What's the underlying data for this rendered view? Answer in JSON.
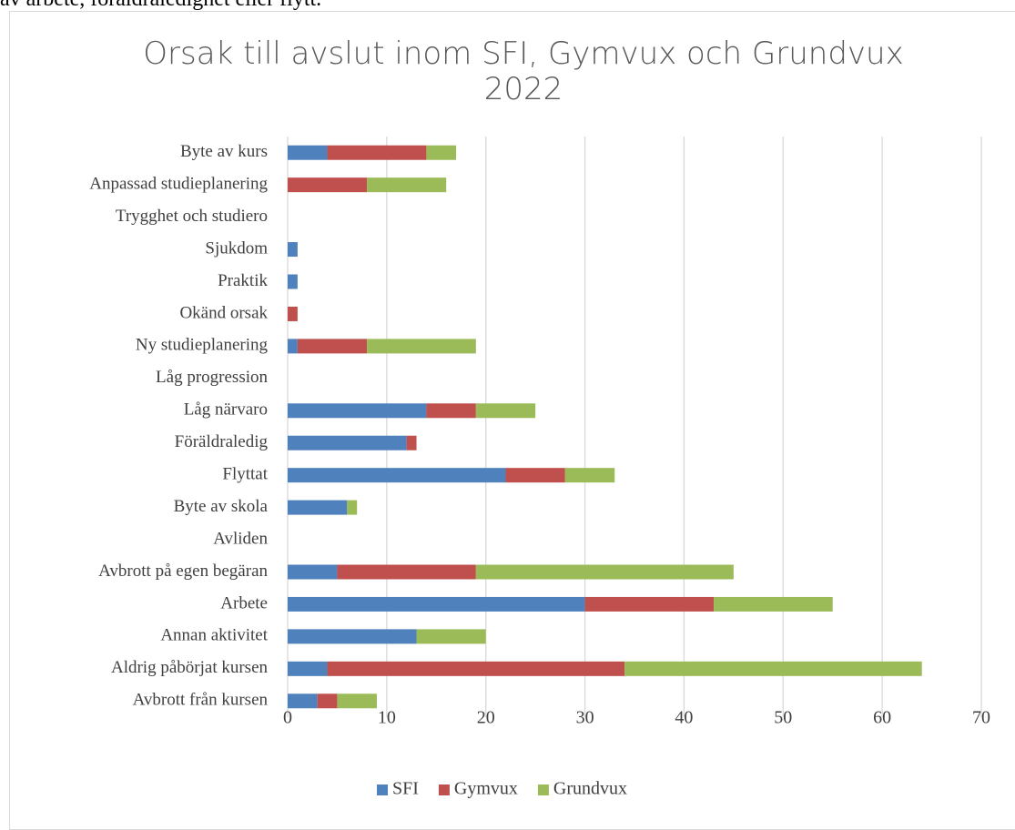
{
  "page_text": "av arbete, föräldraledighet eller flytt.",
  "chart_data": {
    "type": "bar",
    "orientation": "horizontal",
    "stacked": true,
    "title": "Orsak till avslut inom SFI, Gymvux och Grundvux 2022",
    "categories": [
      "Byte av kurs",
      "Anpassad studieplanering",
      "Trygghet och studiero",
      "Sjukdom",
      "Praktik",
      "Okänd orsak",
      "Ny studieplanering",
      "Låg progression",
      "Låg närvaro",
      "Föräldraledig",
      "Flyttat",
      "Byte av skola",
      "Avliden",
      "Avbrott på egen begäran",
      "Arbete",
      "Annan aktivitet",
      "Aldrig påbörjat kursen",
      "Avbrott från kursen"
    ],
    "series": [
      {
        "name": "SFI",
        "color": "#4f81bd",
        "values": [
          4,
          0,
          0,
          1,
          1,
          0,
          1,
          0,
          14,
          12,
          22,
          6,
          0,
          5,
          30,
          13,
          4,
          3
        ]
      },
      {
        "name": "Gymvux",
        "color": "#c0504d",
        "values": [
          10,
          8,
          0,
          0,
          0,
          1,
          7,
          0,
          5,
          1,
          6,
          0,
          0,
          14,
          13,
          0,
          30,
          2
        ]
      },
      {
        "name": "Grundvux",
        "color": "#9bbb59",
        "values": [
          3,
          8,
          0,
          0,
          0,
          0,
          11,
          0,
          6,
          0,
          5,
          1,
          0,
          26,
          12,
          7,
          30,
          4
        ]
      }
    ],
    "xlim": [
      0,
      70
    ],
    "xticks": [
      0,
      10,
      20,
      30,
      40,
      50,
      60,
      70
    ],
    "grid": true,
    "legend": "bottom"
  }
}
